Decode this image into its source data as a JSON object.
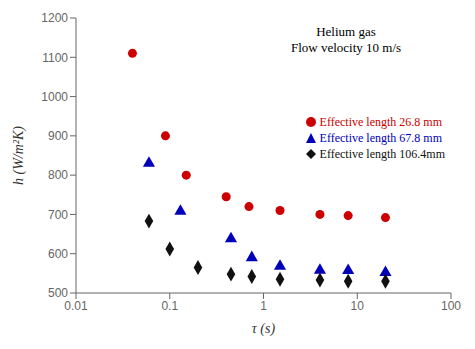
{
  "chart_data": {
    "type": "scatter",
    "xlabel": "τ (s)",
    "ylabel": "h (W/m²K)",
    "annotations": [
      "Helium gas",
      "Flow velocity 10 m/s"
    ],
    "log": "x",
    "xlim": [
      0.01,
      100
    ],
    "xticks": [
      0.01,
      0.1,
      1,
      10,
      100
    ],
    "ylim": [
      500,
      1200
    ],
    "yticks": [
      500,
      600,
      700,
      800,
      900,
      1000,
      1100,
      1200
    ],
    "grid": false,
    "legend": "right",
    "series": [
      {
        "name": "Effective length 26.8 mm",
        "color": "#cc0000",
        "marker": "circle",
        "x": [
          0.04,
          0.09,
          0.15,
          0.4,
          0.7,
          1.5,
          4.0,
          8.0,
          20.0
        ],
        "values": [
          1110,
          900,
          800,
          745,
          720,
          710,
          700,
          697,
          692
        ]
      },
      {
        "name": "Effective length 67.8 mm",
        "color": "#0000bb",
        "marker": "triangle",
        "x": [
          0.06,
          0.13,
          0.45,
          0.75,
          1.5,
          4.0,
          8.0,
          20.0
        ],
        "values": [
          830,
          708,
          638,
          590,
          568,
          558,
          557,
          552
        ]
      },
      {
        "name": "Effective length 106.4mm",
        "color": "#111111",
        "marker": "diamond",
        "x": [
          0.06,
          0.1,
          0.2,
          0.45,
          0.75,
          1.5,
          4.0,
          8.0,
          20.0
        ],
        "values": [
          683,
          612,
          565,
          548,
          542,
          535,
          533,
          530,
          530
        ]
      }
    ]
  }
}
